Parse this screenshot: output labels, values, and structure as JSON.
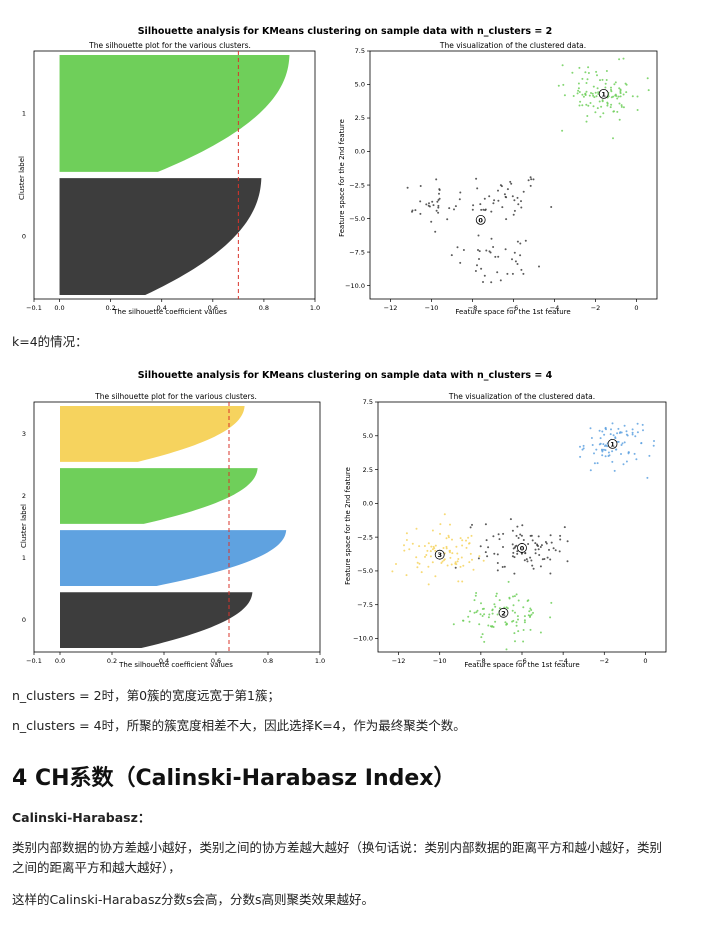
{
  "figures": [
    {
      "title": "Silhouette analysis for KMeans clustering on sample data with n_clusters = 2",
      "left_title": "The silhouette plot for the various clusters.",
      "right_title": "The visualization of the clustered data.",
      "left_xlabel": "The silhouette coefficient values",
      "left_ylabel": "Cluster label",
      "right_xlabel": "Feature space for the 1st feature",
      "right_ylabel": "Feature space for the 2nd feature"
    },
    {
      "title": "Silhouette analysis for KMeans clustering on sample data with n_clusters = 4",
      "left_title": "The silhouette plot for the various clusters.",
      "right_title": "The visualization of the clustered data.",
      "left_xlabel": "The silhouette coefficient values",
      "left_ylabel": "Cluster label",
      "right_xlabel": "Feature space for the 1st feature",
      "right_ylabel": "Feature space for the 2nd feature"
    }
  ],
  "text": {
    "k4_caption": "k=4的情况：",
    "para_n2": "n_clusters = 2时，第0簇的宽度远宽于第1簇；",
    "para_n4": "n_clusters = 4时，所聚的簇宽度相差不大，因此选择K=4，作为最终聚类个数。",
    "section_heading": "4 CH系数（Calinski-Harabasz Index）",
    "ch_label": "Calinski-Harabasz：",
    "ch_desc_1": "类别内部数据的协方差越小越好，类别之间的协方差越大越好（换句话说：类别内部数据的距离平方和越小越好，类别",
    "ch_desc_2": "之间的距离平方和越大越好），",
    "ch_score": "这样的Calinski-Harabasz分数s会高，分数s高则聚类效果越好。"
  },
  "chart_data": [
    {
      "type": "bar",
      "title": "The silhouette plot for the various clusters.",
      "xlabel": "The silhouette coefficient values",
      "ylabel": "Cluster label",
      "xlim": [
        -0.1,
        1.0
      ],
      "xticks": [
        "−0.1",
        "0.0",
        "0.2",
        "0.4",
        "0.6",
        "0.8",
        "1.0"
      ],
      "categories": [
        "0",
        "1"
      ],
      "series": [
        {
          "cluster": "0",
          "max_silhouette": 0.79,
          "color": "#3d3d3d"
        },
        {
          "cluster": "1",
          "max_silhouette": 0.9,
          "color": "#6fcf5a"
        }
      ],
      "average_line": 0.7
    },
    {
      "type": "scatter",
      "title": "The visualization of the clustered data.",
      "xlabel": "Feature space for the 1st feature",
      "ylabel": "Feature space for the 2nd feature",
      "xlim": [
        -13,
        1
      ],
      "ylim": [
        -11,
        7.5
      ],
      "xticks": [
        "−12",
        "−10",
        "−8",
        "−6",
        "−4",
        "−2",
        "0"
      ],
      "yticks": [
        "7.5",
        "5.0",
        "2.5",
        "0.0",
        "−2.5",
        "−5.0",
        "−7.5",
        "−10.0"
      ],
      "clusters": [
        {
          "label": "0",
          "center": [
            -7.6,
            -5.1
          ],
          "color": "#3d3d3d"
        },
        {
          "label": "1",
          "center": [
            -1.6,
            4.3
          ],
          "color": "#6fcf5a"
        }
      ]
    },
    {
      "type": "bar",
      "title": "The silhouette plot for the various clusters.",
      "xlabel": "The silhouette coefficient values",
      "ylabel": "Cluster label",
      "xlim": [
        -0.1,
        1.0
      ],
      "xticks": [
        "−0.1",
        "0.0",
        "0.2",
        "0.4",
        "0.6",
        "0.8",
        "1.0"
      ],
      "categories": [
        "0",
        "1",
        "2",
        "3"
      ],
      "series": [
        {
          "cluster": "0",
          "max_silhouette": 0.74,
          "color": "#3d3d3d"
        },
        {
          "cluster": "1",
          "max_silhouette": 0.87,
          "color": "#5fa2e0"
        },
        {
          "cluster": "2",
          "max_silhouette": 0.76,
          "color": "#6fcf5a"
        },
        {
          "cluster": "3",
          "max_silhouette": 0.71,
          "color": "#f6d35e"
        }
      ],
      "average_line": 0.65
    },
    {
      "type": "scatter",
      "title": "The visualization of the clustered data.",
      "xlabel": "Feature space for the 1st feature",
      "ylabel": "Feature space for the 2nd feature",
      "xlim": [
        -13,
        1
      ],
      "ylim": [
        -11,
        7.5
      ],
      "xticks": [
        "−12",
        "−10",
        "−8",
        "−6",
        "−4",
        "−2",
        "0"
      ],
      "yticks": [
        "7.5",
        "5.0",
        "2.5",
        "0.0",
        "−2.5",
        "−5.0",
        "−7.5",
        "−10.0"
      ],
      "clusters": [
        {
          "label": "0",
          "center": [
            -6.0,
            -3.3
          ],
          "color": "#3d3d3d"
        },
        {
          "label": "1",
          "center": [
            -1.6,
            4.4
          ],
          "color": "#5fa2e0"
        },
        {
          "label": "2",
          "center": [
            -6.9,
            -8.1
          ],
          "color": "#6fcf5a"
        },
        {
          "label": "3",
          "center": [
            -10.0,
            -3.8
          ],
          "color": "#f6d35e"
        }
      ]
    }
  ]
}
